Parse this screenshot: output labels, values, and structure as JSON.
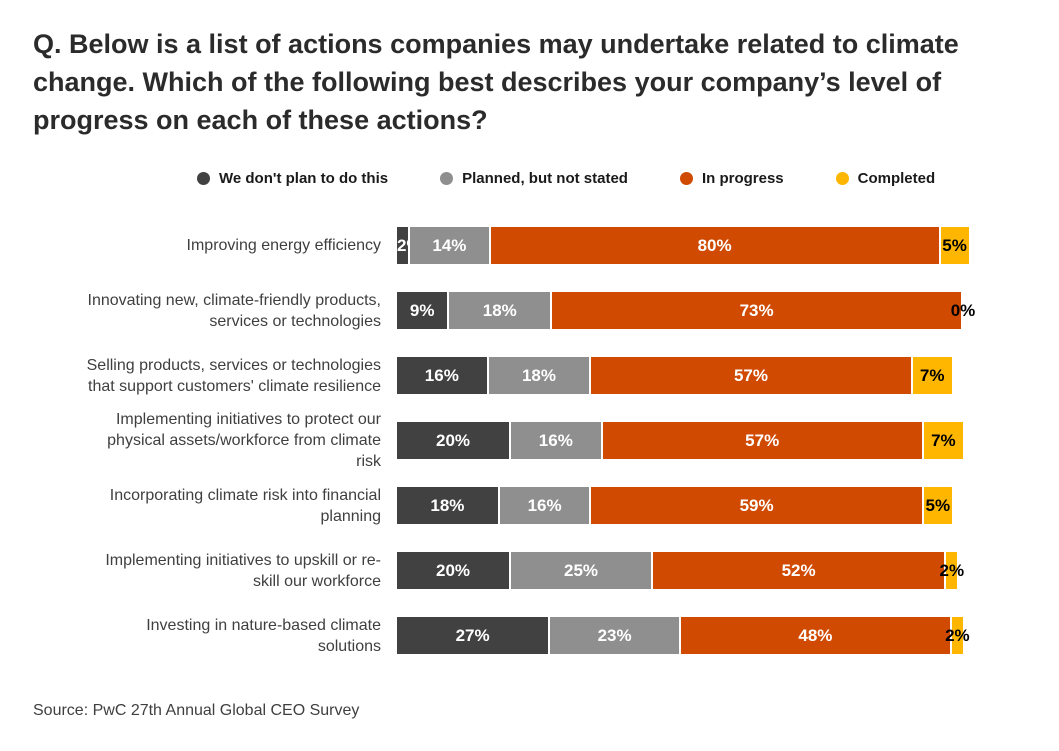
{
  "source": "Source: PwC 27th Annual Global CEO Survey",
  "chart_data": {
    "type": "bar",
    "orientation": "horizontal",
    "stacked": true,
    "title": "Q. Below is a list of actions companies may undertake related to climate change. Which of the following best describes your company’s level of progress on each of these actions?",
    "xlabel": "",
    "ylabel": "",
    "unit": "%",
    "xlim": [
      0,
      100
    ],
    "grid": false,
    "legend_position": "top",
    "value_labels": "inside segments as percentages",
    "categories": [
      [
        "Improving energy efficiency"
      ],
      [
        "Innovating new, climate-friendly products,",
        "services or technologies"
      ],
      [
        "Selling products, services or technologies",
        "that support customers' climate resilience"
      ],
      [
        "Implementing initiatives to protect our",
        "physical assets/workforce from climate",
        "risk"
      ],
      [
        "Incorporating climate risk into financial",
        "planning"
      ],
      [
        "Implementing initiatives to upskill or re-",
        "skill our workforce"
      ],
      [
        "Investing in nature-based climate",
        "solutions"
      ]
    ],
    "series": [
      {
        "name": "We don't plan to do this",
        "color": "#414141",
        "label_color": "#ffffff",
        "values": [
          2,
          9,
          16,
          20,
          18,
          20,
          27
        ]
      },
      {
        "name": "Planned, but not stated",
        "color": "#8f8f8f",
        "label_color": "#ffffff",
        "values": [
          14,
          18,
          18,
          16,
          16,
          25,
          23
        ]
      },
      {
        "name": "In progress",
        "color": "#d04a02",
        "label_color": "#ffffff",
        "values": [
          80,
          73,
          57,
          57,
          59,
          52,
          48
        ]
      },
      {
        "name": "Completed",
        "color": "#ffb600",
        "label_color": "#000000",
        "values": [
          5,
          0,
          7,
          7,
          5,
          2,
          2
        ]
      }
    ]
  }
}
